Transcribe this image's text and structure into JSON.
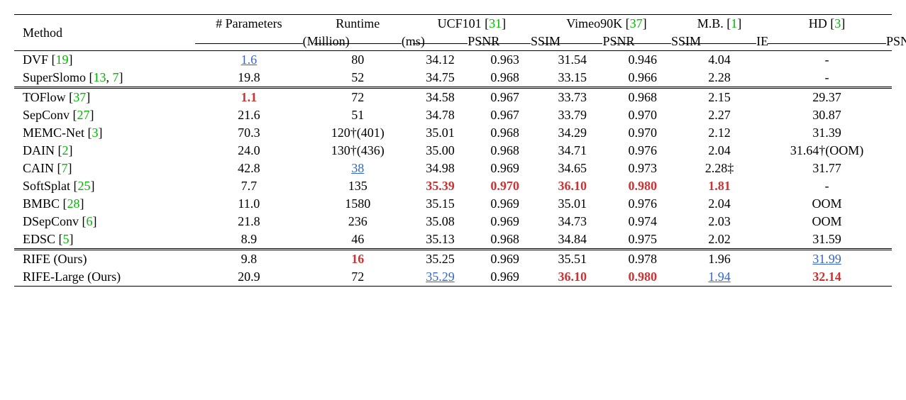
{
  "headers": {
    "method": "Method",
    "params_top": "# Parameters",
    "params_bot": "(Million)",
    "runtime_top": "Runtime",
    "runtime_bot": "(ms)",
    "ucf101": "UCF101 ",
    "ucf101_cite": "31",
    "vimeo": "Vimeo90K ",
    "vimeo_cite": "37",
    "mb": "M.B. ",
    "mb_cite": "1",
    "hd": "HD  ",
    "hd_cite": "3",
    "psnr": "PSNR",
    "ssim": "SSIM",
    "ie": "IE"
  },
  "rows": [
    {
      "method": "DVF ",
      "cite": "19",
      "cite2": "",
      "params": "1.6",
      "params_style": "underline-blue",
      "runtime": "80",
      "ucf_psnr": "34.12",
      "ucf_ssim": "0.963",
      "vim_psnr": "31.54",
      "vim_ssim": "0.946",
      "mb_ie": "4.04",
      "hd_psnr": "-"
    },
    {
      "method": "SuperSlomo ",
      "cite": "13",
      "cite2": "7",
      "params": "19.8",
      "runtime": "52",
      "ucf_psnr": "34.75",
      "ucf_ssim": "0.968",
      "vim_psnr": "33.15",
      "vim_ssim": "0.966",
      "mb_ie": "2.28",
      "hd_psnr": "-"
    },
    {
      "method": "TOFlow ",
      "cite": "37",
      "cite2": "",
      "params": "1.1",
      "params_style": "bold-red",
      "runtime": "72",
      "ucf_psnr": "34.58",
      "ucf_ssim": "0.967",
      "vim_psnr": "33.73",
      "vim_ssim": "0.968",
      "mb_ie": "2.15",
      "hd_psnr": "29.37",
      "double_top": true
    },
    {
      "method": "SepConv ",
      "cite": "27",
      "cite2": "",
      "params": "21.6",
      "runtime": "51",
      "ucf_psnr": "34.78",
      "ucf_ssim": "0.967",
      "vim_psnr": "33.79",
      "vim_ssim": "0.970",
      "mb_ie": "2.27",
      "hd_psnr": "30.87"
    },
    {
      "method": "MEMC-Net ",
      "cite": "3",
      "cite2": "",
      "params": "70.3",
      "runtime": "120†(401)",
      "ucf_psnr": "35.01",
      "ucf_ssim": "0.968",
      "vim_psnr": "34.29",
      "vim_ssim": "0.970",
      "mb_ie": "2.12",
      "hd_psnr": "31.39"
    },
    {
      "method": "DAIN ",
      "cite": "2",
      "cite2": "",
      "params": "24.0",
      "runtime": "130†(436)",
      "ucf_psnr": "35.00",
      "ucf_ssim": "0.968",
      "vim_psnr": "34.71",
      "vim_ssim": "0.976",
      "mb_ie": "2.04",
      "hd_psnr": "31.64†(OOM)"
    },
    {
      "method": "CAIN ",
      "cite": "7",
      "cite2": "",
      "params": "42.8",
      "runtime": "38",
      "runtime_style": "underline-blue",
      "ucf_psnr": "34.98",
      "ucf_ssim": "0.969",
      "vim_psnr": "34.65",
      "vim_ssim": "0.973",
      "mb_ie": "2.28‡",
      "hd_psnr": "31.77"
    },
    {
      "method": "SoftSplat ",
      "cite": "25",
      "cite2": "",
      "params": "7.7",
      "runtime": "135",
      "ucf_psnr": "35.39",
      "ucf_psnr_style": "bold-red",
      "ucf_ssim": "0.970",
      "ucf_ssim_style": "bold-red",
      "vim_psnr": "36.10",
      "vim_psnr_style": "bold-red",
      "vim_ssim": "0.980",
      "vim_ssim_style": "bold-red",
      "mb_ie": "1.81",
      "mb_ie_style": "bold-red",
      "hd_psnr": "-"
    },
    {
      "method": "BMBC ",
      "cite": "28",
      "cite2": "",
      "params": "11.0",
      "runtime": "1580",
      "ucf_psnr": "35.15",
      "ucf_ssim": "0.969",
      "vim_psnr": "35.01",
      "vim_ssim": "0.976",
      "mb_ie": "2.04",
      "hd_psnr": "OOM"
    },
    {
      "method": "DSepConv ",
      "cite": "6",
      "cite2": "",
      "params": "21.8",
      "runtime": "236",
      "ucf_psnr": "35.08",
      "ucf_ssim": "0.969",
      "vim_psnr": "34.73",
      "vim_ssim": "0.974",
      "mb_ie": "2.03",
      "hd_psnr": "OOM"
    },
    {
      "method": "EDSC ",
      "cite": "5",
      "cite2": "",
      "params": "8.9",
      "runtime": "46",
      "ucf_psnr": "35.13",
      "ucf_ssim": "0.968",
      "vim_psnr": "34.84",
      "vim_ssim": "0.975",
      "mb_ie": "2.02",
      "hd_psnr": "31.59"
    },
    {
      "method": "RIFE (Ours)",
      "cite": "",
      "cite2": "",
      "params": "9.8",
      "runtime": "16",
      "runtime_style": "bold-red",
      "ucf_psnr": "35.25",
      "ucf_ssim": "0.969",
      "vim_psnr": "35.51",
      "vim_ssim": "0.978",
      "mb_ie": "1.96",
      "hd_psnr": "31.99",
      "hd_psnr_style": "underline-blue",
      "double_top": true
    },
    {
      "method": "RIFE-Large (Ours)",
      "cite": "",
      "cite2": "",
      "params": "20.9",
      "runtime": "72",
      "ucf_psnr": "35.29",
      "ucf_psnr_style": "underline-blue",
      "ucf_ssim": "0.969",
      "vim_psnr": "36.10",
      "vim_psnr_style": "bold-red",
      "vim_ssim": "0.980",
      "vim_ssim_style": "bold-red",
      "mb_ie": "1.94",
      "mb_ie_style": "underline-blue",
      "hd_psnr": "32.14",
      "hd_psnr_style": "bold-red"
    }
  ]
}
